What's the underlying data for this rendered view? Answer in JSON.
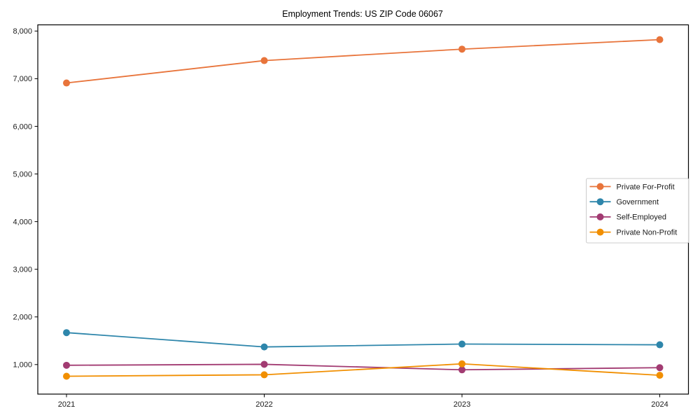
{
  "figure": {
    "background_color": "#ffffff",
    "axis_color": "#000000",
    "tick_label_color": "#1a1a1a",
    "legend_border_color": "#cccccc"
  },
  "chart_data": {
    "type": "line",
    "title": "Employment Trends: US ZIP Code 06067",
    "x": [
      2021,
      2022,
      2023,
      2024
    ],
    "x_tick_labels": [
      "2021",
      "2022",
      "2023",
      "2024"
    ],
    "y_ticks": [
      1000,
      2000,
      3000,
      4000,
      5000,
      6000,
      7000,
      8000
    ],
    "y_tick_labels": [
      "1,000",
      "2,000",
      "3,000",
      "4,000",
      "5,000",
      "6,000",
      "7,000",
      "8,000"
    ],
    "ylim": [
      380,
      8130
    ],
    "grid": false,
    "marker": "o",
    "legend_position": "center right",
    "series": [
      {
        "name": "Private For-Profit",
        "color": "#E8743B",
        "values": [
          6910,
          7380,
          7620,
          7820
        ]
      },
      {
        "name": "Government",
        "color": "#2E86AB",
        "values": [
          1670,
          1370,
          1430,
          1415
        ]
      },
      {
        "name": "Self-Employed",
        "color": "#A23B72",
        "values": [
          985,
          1005,
          890,
          935
        ]
      },
      {
        "name": "Private Non-Profit",
        "color": "#F18F01",
        "values": [
          755,
          785,
          1015,
          775
        ]
      }
    ]
  }
}
